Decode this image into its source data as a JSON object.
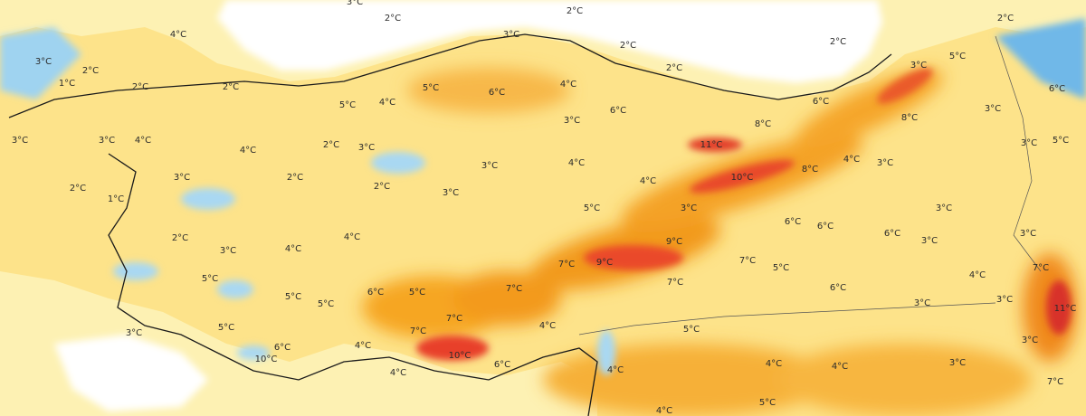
{
  "labels": [
    "3°C",
    "4°C",
    "2°C",
    "1°C",
    "2°C",
    "2°C",
    "2°C",
    "3°C",
    "2°C",
    "3°C",
    "2°C",
    "2°C",
    "2°C",
    "2°C",
    "5°C",
    "3°C",
    "6°C",
    "3°C",
    "3°C",
    "4°C",
    "4°C",
    "5°C",
    "6°C",
    "5°C",
    "4°C",
    "4°C",
    "3°C",
    "6°C",
    "2°C",
    "3°C",
    "8°C",
    "6°C",
    "8°C",
    "3°C",
    "3°C",
    "5°C",
    "11°C",
    "3°C",
    "2°C",
    "1°C",
    "2°C",
    "2°C",
    "3°C",
    "4°C",
    "3°C",
    "4°C",
    "10°C",
    "8°C",
    "4°C",
    "3°C",
    "2°C",
    "3°C",
    "4°C",
    "4°C",
    "5°C",
    "3°C",
    "6°C",
    "6°C",
    "6°C",
    "3°C",
    "3°C",
    "3°C",
    "9°C",
    "5°C",
    "5°C",
    "5°C",
    "6°C",
    "5°C",
    "7°C",
    "7°C",
    "9°C",
    "7°C",
    "7°C",
    "5°C",
    "6°C",
    "4°C",
    "7°C",
    "3°C",
    "11°C",
    "7°C",
    "7°C",
    "4°C",
    "5°C",
    "3°C",
    "5°C",
    "3°C",
    "4°C",
    "6°C",
    "10°C",
    "10°C",
    "6°C",
    "4°C",
    "4°C",
    "4°C",
    "4°C",
    "4°C",
    "5°C",
    "3°C",
    "7°C",
    "3°C"
  ]
}
